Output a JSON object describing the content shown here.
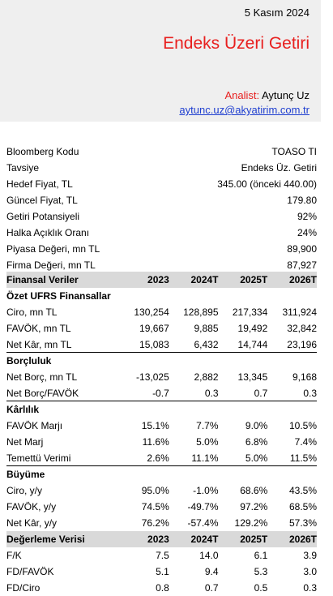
{
  "header": {
    "date": "5 Kasım 2024",
    "title": "Endeks Üzeri Getiri",
    "analyst_label": "Analist:",
    "analyst_name": "Aytunç Uz",
    "email": "aytunc.uz@akyatirim.com.tr"
  },
  "info": [
    {
      "label": "Bloomberg Kodu",
      "value": "TOASO TI"
    },
    {
      "label": "Tavsiye",
      "value": "Endeks Üz. Getiri"
    },
    {
      "label": "Hedef Fiyat, TL",
      "value": "345.00 (önceki 440.00)"
    },
    {
      "label": "Güncel Fiyat, TL",
      "value": "179.80"
    },
    {
      "label": "Getiri Potansiyeli",
      "value": "92%"
    },
    {
      "label": "Halka Açıklık Oranı",
      "value": "24%"
    },
    {
      "label": "Piyasa Değeri, mn TL",
      "value": "89,900"
    },
    {
      "label": "Firma Değeri, mn TL",
      "value": "87,927"
    }
  ],
  "table": {
    "header": {
      "label": "Finansal Veriler",
      "cols": [
        "2023",
        "2024T",
        "2025T",
        "2026T"
      ]
    },
    "ufrs_title": "Özet UFRS Finansallar",
    "ufrs": [
      {
        "label": "Ciro, mn TL",
        "v": [
          "130,254",
          "128,895",
          "217,334",
          "311,924"
        ]
      },
      {
        "label": "FAVÖK, mn TL",
        "v": [
          "19,667",
          "9,885",
          "19,492",
          "32,842"
        ]
      },
      {
        "label": "Net Kâr, mn TL",
        "v": [
          "15,083",
          "6,432",
          "14,744",
          "23,196"
        ]
      }
    ],
    "borc_title": "Borçluluk",
    "borc": [
      {
        "label": "Net Borç, mn TL",
        "v": [
          "-13,025",
          "2,882",
          "13,345",
          "9,168"
        ]
      },
      {
        "label": "Net Borç/FAVÖK",
        "v": [
          "-0.7",
          "0.3",
          "0.7",
          "0.3"
        ]
      }
    ],
    "karlilik_title": "Kârlılık",
    "karlilik": [
      {
        "label": "FAVÖK Marjı",
        "v": [
          "15.1%",
          "7.7%",
          "9.0%",
          "10.5%"
        ]
      },
      {
        "label": "Net Marj",
        "v": [
          "11.6%",
          "5.0%",
          "6.8%",
          "7.4%"
        ]
      },
      {
        "label": "Temettü Verimi",
        "v": [
          "2.6%",
          "11.1%",
          "5.0%",
          "11.5%"
        ]
      }
    ],
    "buyume_title": "Büyüme",
    "buyume": [
      {
        "label": "Ciro, y/y",
        "v": [
          "95.0%",
          "-1.0%",
          "68.6%",
          "43.5%"
        ]
      },
      {
        "label": "FAVÖK, y/y",
        "v": [
          "74.5%",
          "-49.7%",
          "97.2%",
          "68.5%"
        ]
      },
      {
        "label": "Net Kâr, y/y",
        "v": [
          "76.2%",
          "-57.4%",
          "129.2%",
          "57.3%"
        ]
      }
    ],
    "degerleme_header": {
      "label": "Değerleme Verisi",
      "cols": [
        "2023",
        "2024T",
        "2025T",
        "2026T"
      ]
    },
    "degerleme": [
      {
        "label": "F/K",
        "v": [
          "7.5",
          "14.0",
          "6.1",
          "3.9"
        ]
      },
      {
        "label": "FD/FAVÖK",
        "v": [
          "5.1",
          "9.4",
          "5.3",
          "3.0"
        ]
      },
      {
        "label": "FD/Ciro",
        "v": [
          "0.8",
          "0.7",
          "0.5",
          "0.3"
        ]
      }
    ]
  }
}
